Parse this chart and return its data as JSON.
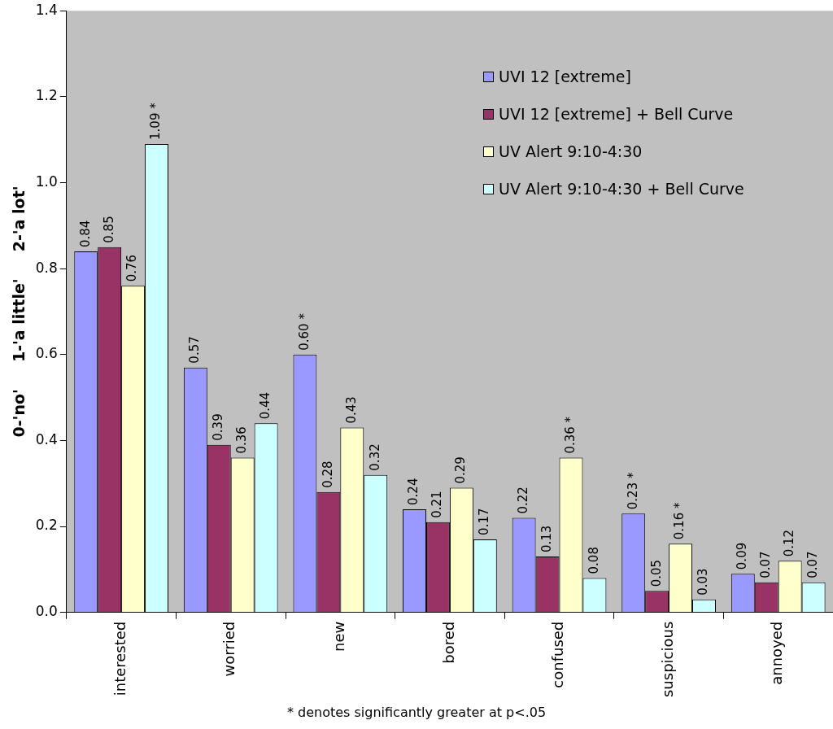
{
  "chart_data": {
    "type": "bar",
    "ylabel": "0-'no'     1-'a little'     2-'a lot'",
    "categories": [
      "interested",
      "worried",
      "new",
      "bored",
      "confused",
      "suspicious",
      "annoyed"
    ],
    "series": [
      {
        "name": "UVI 12 [extreme]",
        "color": "#9999ff",
        "values": [
          0.84,
          0.57,
          0.6,
          0.24,
          0.22,
          0.23,
          0.09
        ],
        "value_labels": [
          "0.84",
          "0.57",
          "0.60 *",
          "0.24",
          "0.22",
          "0.23 *",
          "0.09"
        ]
      },
      {
        "name": "UVI 12 [extreme] + Bell Curve",
        "color": "#993366",
        "values": [
          0.85,
          0.39,
          0.28,
          0.21,
          0.13,
          0.05,
          0.07
        ],
        "value_labels": [
          "0.85",
          "0.39",
          "0.28",
          "0.21",
          "0.13",
          "0.05",
          "0.07"
        ]
      },
      {
        "name": "UV Alert 9:10-4:30",
        "color": "#ffffcc",
        "values": [
          0.76,
          0.36,
          0.43,
          0.29,
          0.36,
          0.16,
          0.12
        ],
        "value_labels": [
          "0.76",
          "0.36",
          "0.43",
          "0.29",
          "0.36 *",
          "0.16 *",
          "0.12"
        ]
      },
      {
        "name": "UV Alert 9:10-4:30 + Bell Curve",
        "color": "#ccffff",
        "values": [
          1.09,
          0.44,
          0.32,
          0.17,
          0.08,
          0.03,
          0.07
        ],
        "value_labels": [
          "1.09 *",
          "0.44",
          "0.32",
          "0.17",
          "0.08",
          "0.03",
          "0.07"
        ]
      }
    ],
    "ylim": [
      0,
      1.4
    ],
    "yticks": [
      {
        "value": 0,
        "label": "0.0"
      },
      {
        "value": 0.2,
        "label": "0.2"
      },
      {
        "value": 0.4,
        "label": "0.4"
      },
      {
        "value": 0.6,
        "label": "0.6"
      },
      {
        "value": 0.8,
        "label": "0.8"
      },
      {
        "value": 1.0,
        "label": "1.0"
      },
      {
        "value": 1.2,
        "label": "1.2"
      },
      {
        "value": 1.4,
        "label": "1.4"
      }
    ],
    "grid": false,
    "legend": "top right",
    "annotations": [
      "* denotes significantly greater at p<.05"
    ]
  }
}
